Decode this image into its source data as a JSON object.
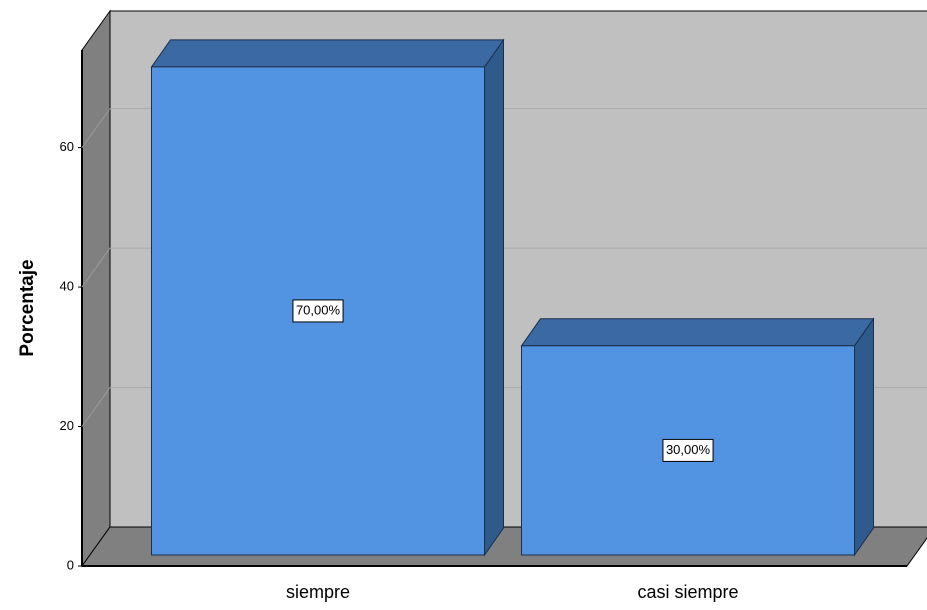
{
  "chart_data": {
    "type": "bar",
    "categories": [
      "siempre",
      "casi siempre"
    ],
    "values": [
      70,
      30
    ],
    "value_labels": [
      "70,00%",
      "30,00%"
    ],
    "color": "#5294e2",
    "ylabel": "Porcentaje",
    "ylim": [
      0,
      74
    ],
    "yticks": [
      0,
      20,
      40,
      60
    ],
    "grid": true
  }
}
